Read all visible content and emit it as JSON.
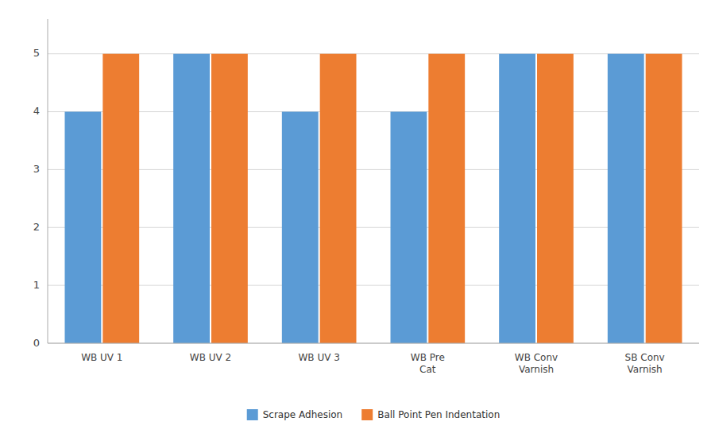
{
  "chart_data": {
    "type": "bar",
    "categories": [
      "WB UV 1",
      "WB UV 2",
      "WB UV 3",
      "WB Pre\nCat",
      "WB Conv\nVarnish",
      "SB Conv\nVarnish"
    ],
    "series": [
      {
        "name": "Scrape Adhesion",
        "color": "#5B9BD5",
        "values": [
          4,
          5,
          4,
          4,
          5,
          5
        ]
      },
      {
        "name": "Ball Point Pen Indentation",
        "color": "#ED7D31",
        "values": [
          5,
          5,
          5,
          5,
          5,
          5
        ]
      }
    ],
    "ylim": [
      0,
      5.6
    ],
    "yticks": [
      0,
      1,
      2,
      3,
      4,
      5
    ],
    "grid": true,
    "legend": "bottom"
  }
}
